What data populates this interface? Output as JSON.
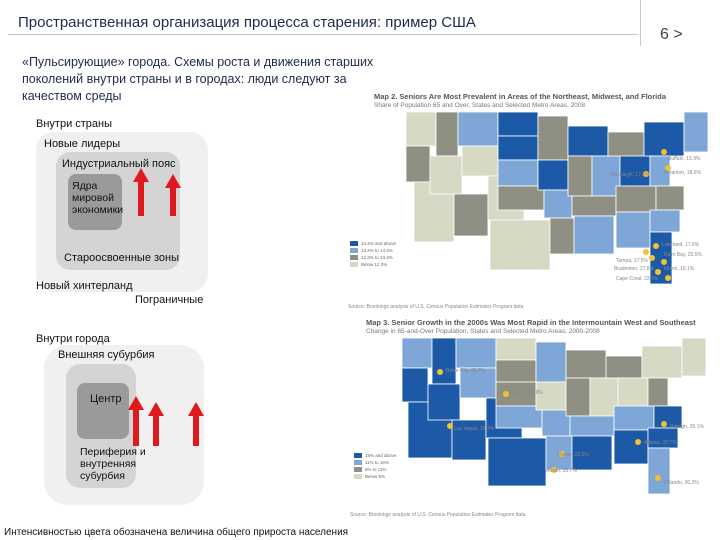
{
  "header": {
    "title": "Пространственная организация процесса старения: пример США",
    "page_number": "6 >"
  },
  "subtitle": "«Пульсирующие» города. Схемы роста и движения старших поколений внутри страны и в городах: люди следуют за качеством среды",
  "diagram_country": {
    "heading": "Внутри страны",
    "new_leaders": "Новые лидеры",
    "industrial_belt": "Индустриальный  пояс",
    "core": "Ядра мировой экономики",
    "old_settled": "Староосвоенные зоны",
    "new_hinterland": "Новый хинтерланд",
    "border": "Пограничные"
  },
  "diagram_city": {
    "heading": "Внутри города",
    "outer_suburbia": "Внешняя субурбия",
    "center": "Центр",
    "periphery": "Периферия и внутренняя субурбия"
  },
  "map1": {
    "title": "Map 2. Seniors Are Most Prevalent in Areas of the Northeast, Midwest, and Florida",
    "subtitle": "Share of Population 65 and Over, States and Selected Metro Areas, 2008",
    "legend": [
      "14.4% and above",
      "13.4% to 14.4%",
      "12.3% to 13.4%",
      "Below 12.3%"
    ],
    "callouts": [
      "Buffalo, 15.9%",
      "Pittsburgh, 17.2%",
      "Scranton, 18.6%",
      "Lakeland, 17.6%",
      "Tampa, 17.5%",
      "Palm Bay, 20.5%",
      "Bradenton, 27.8%",
      "Cape Coral, 22.3%",
      "Miami, 16.1%"
    ],
    "source": "Source: Brookings analysis of U.S. Census Population Estimates Program data"
  },
  "map2": {
    "title": "Map 3. Senior Growth in the 2000s Was Most Rapid in the Intermountain West and Southeast",
    "subtitle": "Change in 65-and-Over Population, States and Selected Metro Areas, 2000-2008",
    "legend": [
      "15% and above",
      "11% to 15%",
      "5% to 11%",
      "Below 5%"
    ],
    "callouts": [
      "Boise City, 35.7%",
      "Denver, 27.0%",
      "Las Vegas, 32.4%",
      "Raleigh, 35.1%",
      "Atlanta, 32.7%",
      "Dallas, 23.6%",
      "Austin, 35.7%",
      "Orlando, 30.2%"
    ],
    "source": "Source: Brookings analysis of U.S. Census Population Estimates Program data"
  },
  "footnote": "Интенсивностью цвета обозначена величина  общего прироста населения",
  "colors": {
    "title_text": "#1f2b4d",
    "arrow": "#e0191e",
    "outer_box": "#f0f0f0",
    "mid_box": "#d4d4d4",
    "inner_box": "#9a9a9a",
    "map_dark": "#1c5aa8",
    "map_medium": "#7ea6d6",
    "map_gray": "#8f8f84",
    "map_light": "#d7d9c4",
    "dot": "#f2c230"
  }
}
